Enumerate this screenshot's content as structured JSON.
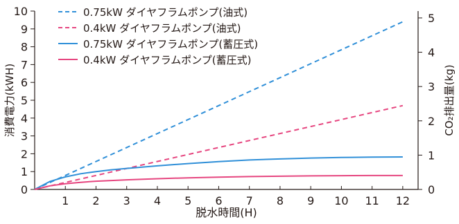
{
  "chart_data": {
    "type": "line",
    "xlabel": "脱水時間(H)",
    "ylabel": "消費電力(kWH)",
    "y2label": "CO₂排出量(kg)",
    "xlim": [
      0,
      12.5
    ],
    "ylim": [
      0,
      10
    ],
    "y2lim": [
      0,
      5.2
    ],
    "xticks": [
      1,
      2,
      3,
      4,
      5,
      6,
      7,
      8,
      9,
      10,
      11,
      12
    ],
    "yticks": [
      0,
      1,
      2,
      3,
      4,
      5,
      6,
      7,
      8,
      9,
      10
    ],
    "y2ticks": [
      0,
      1,
      2,
      3,
      4,
      5
    ],
    "grid": false,
    "legend_position": "top-left",
    "series": [
      {
        "name": "0.75kW ダイヤフラムポンプ(油式)",
        "style": "dashed",
        "color": "#2f8fd8",
        "x": [
          0,
          12
        ],
        "y": [
          0,
          9.4
        ]
      },
      {
        "name": "0.4kW ダイヤフラムポンプ(油式)",
        "style": "dashed",
        "color": "#e6457f",
        "x": [
          0,
          12
        ],
        "y": [
          0,
          4.7
        ]
      },
      {
        "name": "0.75kW ダイヤフラムポンプ(蓄圧式)",
        "style": "solid",
        "color": "#2f8fd8",
        "x": [
          0,
          0.5,
          1,
          1.5,
          2,
          2.5,
          3,
          4,
          5,
          6,
          7,
          8,
          9,
          10,
          11,
          12
        ],
        "y": [
          0,
          0.45,
          0.7,
          0.88,
          1.0,
          1.1,
          1.18,
          1.32,
          1.45,
          1.56,
          1.65,
          1.71,
          1.76,
          1.79,
          1.81,
          1.82
        ]
      },
      {
        "name": "0.4kW ダイヤフラムポンプ(蓄圧式)",
        "style": "solid",
        "color": "#e6457f",
        "x": [
          0,
          0.5,
          1,
          1.5,
          2,
          2.5,
          3,
          4,
          5,
          6,
          7,
          8,
          9,
          10,
          11,
          12
        ],
        "y": [
          0,
          0.2,
          0.32,
          0.4,
          0.46,
          0.5,
          0.54,
          0.6,
          0.65,
          0.69,
          0.72,
          0.74,
          0.76,
          0.77,
          0.78,
          0.78
        ]
      }
    ]
  }
}
